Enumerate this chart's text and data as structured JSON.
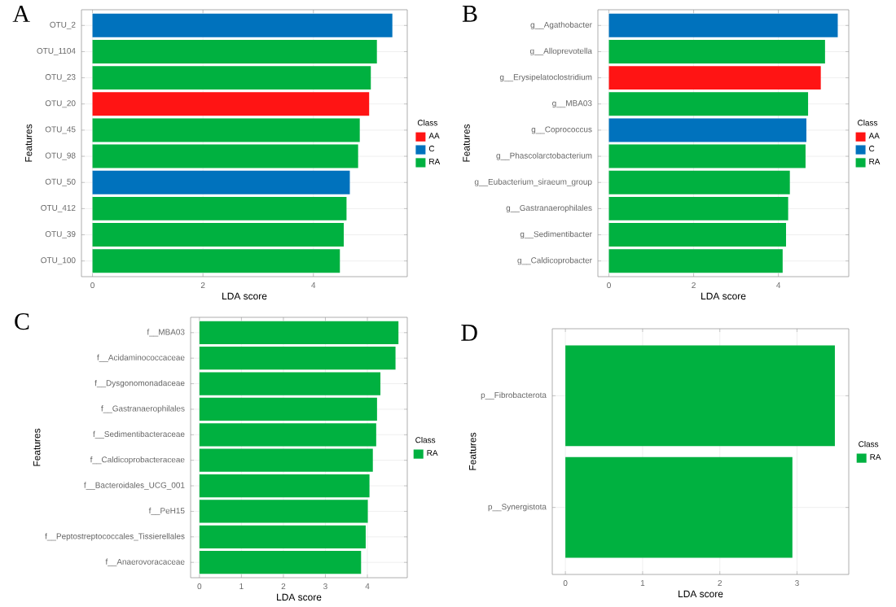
{
  "chart_data": [
    {
      "type": "bar",
      "orientation": "horizontal",
      "title": "A",
      "xlabel": "LDA score",
      "ylabel": "Features",
      "legend_title": "Class",
      "legend": "right",
      "grid": true,
      "categories": [
        "OTU_2",
        "OTU_1104",
        "OTU_23",
        "OTU_20",
        "OTU_45",
        "OTU_98",
        "OTU_50",
        "OTU_412",
        "OTU_39",
        "OTU_100"
      ],
      "series": [
        {
          "name": "AA",
          "color": "#ff1414",
          "values": [
            null,
            null,
            null,
            5.01,
            null,
            null,
            null,
            null,
            null,
            null
          ]
        },
        {
          "name": "C",
          "color": "#0072bd",
          "values": [
            5.43,
            null,
            null,
            null,
            null,
            null,
            4.66,
            null,
            null,
            null
          ]
        },
        {
          "name": "RA",
          "color": "#00b140",
          "values": [
            null,
            5.15,
            5.04,
            null,
            4.84,
            4.81,
            null,
            4.6,
            4.55,
            4.48
          ]
        }
      ],
      "xlim": [
        -0.2,
        5.7
      ],
      "xticks": [
        0,
        2,
        4
      ]
    },
    {
      "type": "bar",
      "orientation": "horizontal",
      "title": "B",
      "xlabel": "LDA score",
      "ylabel": "Features",
      "legend_title": "Class",
      "legend": "right",
      "grid": true,
      "categories": [
        "g__Agathobacter",
        "g__Alloprevotella",
        "g__Erysipelatoclostridium",
        "g__MBA03",
        "g__Coprococcus",
        "g__Phascolarctobacterium",
        "g__Eubacterium_siraeum_group",
        "g__Gastranaerophilales",
        "g__Sedimentibacter",
        "g__Caldicoprobacter"
      ],
      "series": [
        {
          "name": "AA",
          "color": "#ff1414",
          "values": [
            null,
            null,
            5.0,
            null,
            null,
            null,
            null,
            null,
            null,
            null
          ]
        },
        {
          "name": "C",
          "color": "#0072bd",
          "values": [
            5.4,
            null,
            null,
            null,
            4.66,
            null,
            null,
            null,
            null,
            null
          ]
        },
        {
          "name": "RA",
          "color": "#00b140",
          "values": [
            null,
            5.1,
            null,
            4.7,
            null,
            4.64,
            4.27,
            4.23,
            4.18,
            4.1
          ]
        }
      ],
      "xlim": [
        -0.26,
        5.66
      ],
      "xticks": [
        0,
        2,
        4
      ]
    },
    {
      "type": "bar",
      "orientation": "horizontal",
      "title": "C",
      "xlabel": "LDA score",
      "ylabel": "Features",
      "legend_title": "Class",
      "legend": "right",
      "grid": true,
      "categories": [
        "f__MBA03",
        "f__Acidaminococcaceae",
        "f__Dysgonomonadaceae",
        "f__Gastranaerophilales",
        "f__Sedimentibacteraceae",
        "f__Caldicoprobacteraceae",
        "f__Bacteroidales_UCG_001",
        "f__PeH15",
        "f__Peptostreptococcales_Tissierellales",
        "f__Anaerovoracaceae"
      ],
      "series": [
        {
          "name": "RA",
          "color": "#00b140",
          "values": [
            4.74,
            4.67,
            4.31,
            4.23,
            4.21,
            4.13,
            4.05,
            4.01,
            3.96,
            3.85
          ]
        }
      ],
      "xlim": [
        -0.21,
        4.95
      ],
      "xticks": [
        0,
        1,
        2,
        3,
        4
      ]
    },
    {
      "type": "bar",
      "orientation": "horizontal",
      "title": "D",
      "xlabel": "LDA score",
      "ylabel": "Features",
      "legend_title": "Class",
      "legend": "right",
      "grid": true,
      "categories": [
        "p__Fibrobacterota",
        "p__Synergistota"
      ],
      "series": [
        {
          "name": "RA",
          "color": "#00b140",
          "values": [
            3.49,
            2.94
          ]
        }
      ],
      "xlim": [
        -0.17,
        3.67
      ],
      "xticks": [
        0,
        1,
        2,
        3
      ]
    }
  ]
}
